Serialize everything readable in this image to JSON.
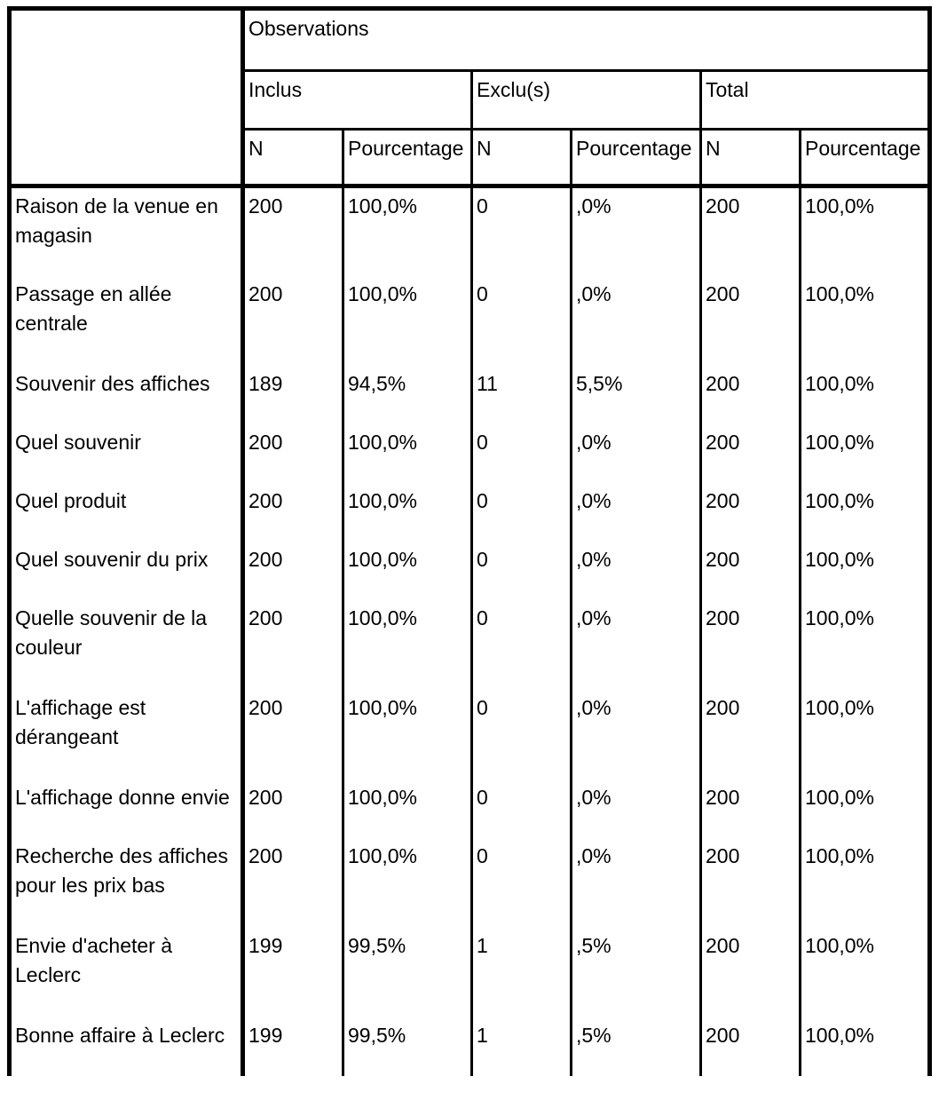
{
  "table": {
    "title": "Observations",
    "groups": [
      {
        "label": "Inclus"
      },
      {
        "label": "Exclu(s)"
      },
      {
        "label": "Total"
      }
    ],
    "subheaders": [
      "N",
      "Pourcentage",
      "N",
      "Pourcentage",
      "N",
      "Pourcentage"
    ],
    "rows": [
      {
        "label": "Raison de la venue en magasin",
        "lines": 2,
        "values": [
          "200",
          "100,0%",
          "0",
          ",0%",
          "200",
          "100,0%"
        ]
      },
      {
        "label": "Passage en allée centrale",
        "lines": 2,
        "values": [
          "200",
          "100,0%",
          "0",
          ",0%",
          "200",
          "100,0%"
        ]
      },
      {
        "label": "Souvenir des affiches",
        "lines": 1,
        "values": [
          "189",
          "94,5%",
          "11",
          "5,5%",
          "200",
          "100,0%"
        ]
      },
      {
        "label": "Quel souvenir",
        "lines": 1,
        "values": [
          "200",
          "100,0%",
          "0",
          ",0%",
          "200",
          "100,0%"
        ]
      },
      {
        "label": "Quel produit",
        "lines": 1,
        "values": [
          "200",
          "100,0%",
          "0",
          ",0%",
          "200",
          "100,0%"
        ]
      },
      {
        "label": "Quel souvenir du prix",
        "lines": 1,
        "values": [
          "200",
          "100,0%",
          "0",
          ",0%",
          "200",
          "100,0%"
        ]
      },
      {
        "label": "Quelle souvenir de la couleur",
        "lines": 2,
        "values": [
          "200",
          "100,0%",
          "0",
          ",0%",
          "200",
          "100,0%"
        ]
      },
      {
        "label": "L'affichage est dérangeant",
        "lines": 2,
        "values": [
          "200",
          "100,0%",
          "0",
          ",0%",
          "200",
          "100,0%"
        ]
      },
      {
        "label": "L'affichage donne envie",
        "lines": 1,
        "values": [
          "200",
          "100,0%",
          "0",
          ",0%",
          "200",
          "100,0%"
        ]
      },
      {
        "label": "Recherche des affiches pour les prix bas",
        "lines": 2,
        "values": [
          "200",
          "100,0%",
          "0",
          ",0%",
          "200",
          "100,0%"
        ]
      },
      {
        "label": "Envie d'acheter à Leclerc",
        "lines": 2,
        "values": [
          "199",
          "99,5%",
          "1",
          ",5%",
          "200",
          "100,0%"
        ]
      },
      {
        "label": "Bonne affaire à Leclerc",
        "lines": 1,
        "values": [
          "199",
          "99,5%",
          "1",
          ",5%",
          "200",
          "100,0%"
        ]
      }
    ]
  }
}
